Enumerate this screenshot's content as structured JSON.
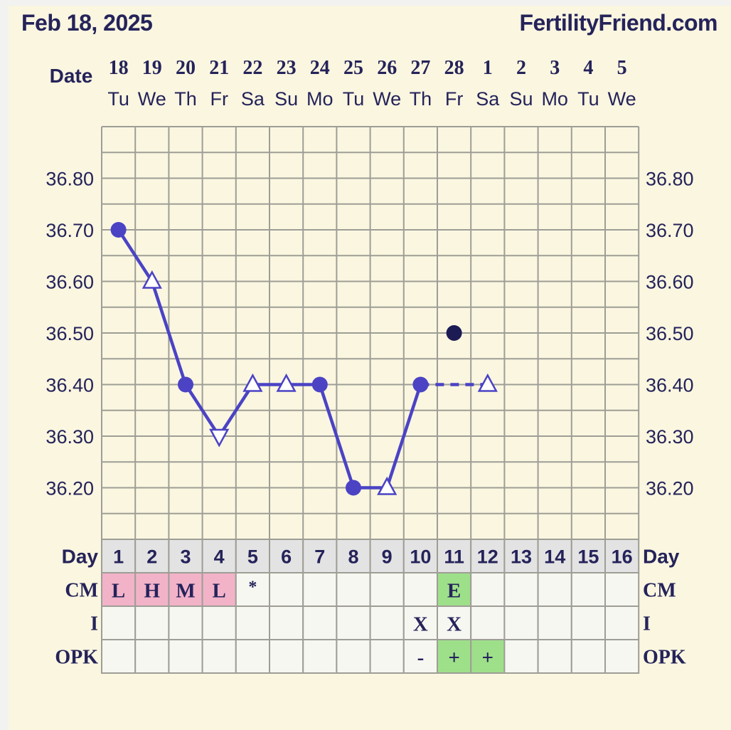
{
  "header": {
    "date_title": "Feb 18, 2025",
    "brand": "FertilityFriend.com"
  },
  "labels": {
    "date": "Date",
    "day": "Day",
    "cm": "CM",
    "i": "I",
    "opk": "OPK"
  },
  "colors": {
    "background": "#faf6e0",
    "grid": "#9e9e96",
    "line": "#4b43c4",
    "text": "#25235a",
    "day_row": "#e3e3e3",
    "cell": "#f7f7f2",
    "pink": "#f2b3c9",
    "green": "#9ee08a",
    "black_point": "#1d1b54"
  },
  "chart_data": {
    "type": "line",
    "title": "",
    "y_range": [
      36.1,
      36.9
    ],
    "y_ticks": [
      "36.80",
      "36.70",
      "36.60",
      "36.50",
      "36.40",
      "36.30",
      "36.20"
    ],
    "columns": [
      {
        "date": "18",
        "weekday": "Tu",
        "day": "1",
        "cm": "L",
        "cm_color": "pink",
        "i": "",
        "opk": "",
        "opk_color": ""
      },
      {
        "date": "19",
        "weekday": "We",
        "day": "2",
        "cm": "H",
        "cm_color": "pink",
        "i": "",
        "opk": "",
        "opk_color": ""
      },
      {
        "date": "20",
        "weekday": "Th",
        "day": "3",
        "cm": "M",
        "cm_color": "pink",
        "i": "",
        "opk": "",
        "opk_color": ""
      },
      {
        "date": "21",
        "weekday": "Fr",
        "day": "4",
        "cm": "L",
        "cm_color": "pink",
        "i": "",
        "opk": "",
        "opk_color": ""
      },
      {
        "date": "22",
        "weekday": "Sa",
        "day": "5",
        "cm": "*",
        "cm_color": "",
        "i": "",
        "opk": "",
        "opk_color": ""
      },
      {
        "date": "23",
        "weekday": "Su",
        "day": "6",
        "cm": "",
        "cm_color": "",
        "i": "",
        "opk": "",
        "opk_color": ""
      },
      {
        "date": "24",
        "weekday": "Mo",
        "day": "7",
        "cm": "",
        "cm_color": "",
        "i": "",
        "opk": "",
        "opk_color": ""
      },
      {
        "date": "25",
        "weekday": "Tu",
        "day": "8",
        "cm": "",
        "cm_color": "",
        "i": "",
        "opk": "",
        "opk_color": ""
      },
      {
        "date": "26",
        "weekday": "We",
        "day": "9",
        "cm": "",
        "cm_color": "",
        "i": "",
        "opk": "",
        "opk_color": ""
      },
      {
        "date": "27",
        "weekday": "Th",
        "day": "10",
        "cm": "",
        "cm_color": "",
        "i": "X",
        "opk": "-",
        "opk_color": ""
      },
      {
        "date": "28",
        "weekday": "Fr",
        "day": "11",
        "cm": "E",
        "cm_color": "green",
        "i": "X",
        "opk": "+",
        "opk_color": "green"
      },
      {
        "date": "1",
        "weekday": "Sa",
        "day": "12",
        "cm": "",
        "cm_color": "",
        "i": "",
        "opk": "+",
        "opk_color": "green"
      },
      {
        "date": "2",
        "weekday": "Su",
        "day": "13",
        "cm": "",
        "cm_color": "",
        "i": "",
        "opk": "",
        "opk_color": ""
      },
      {
        "date": "3",
        "weekday": "Mo",
        "day": "14",
        "cm": "",
        "cm_color": "",
        "i": "",
        "opk": "",
        "opk_color": ""
      },
      {
        "date": "4",
        "weekday": "Tu",
        "day": "15",
        "cm": "",
        "cm_color": "",
        "i": "",
        "opk": "",
        "opk_color": ""
      },
      {
        "date": "5",
        "weekday": "We",
        "day": "16",
        "cm": "",
        "cm_color": "",
        "i": "",
        "opk": "",
        "opk_color": ""
      }
    ],
    "temperatures": [
      {
        "day": 1,
        "value": 36.7,
        "marker": "circle"
      },
      {
        "day": 2,
        "value": 36.6,
        "marker": "triangle"
      },
      {
        "day": 3,
        "value": 36.4,
        "marker": "circle"
      },
      {
        "day": 4,
        "value": 36.3,
        "marker": "triangle-down"
      },
      {
        "day": 5,
        "value": 36.4,
        "marker": "triangle"
      },
      {
        "day": 6,
        "value": 36.4,
        "marker": "triangle"
      },
      {
        "day": 7,
        "value": 36.4,
        "marker": "circle"
      },
      {
        "day": 8,
        "value": 36.2,
        "marker": "circle"
      },
      {
        "day": 9,
        "value": 36.2,
        "marker": "triangle"
      },
      {
        "day": 10,
        "value": 36.4,
        "marker": "circle"
      },
      {
        "day": 12,
        "value": 36.4,
        "marker": "triangle"
      }
    ],
    "dashed_segments": [
      [
        10,
        12
      ]
    ],
    "discarded_points": [
      {
        "day": 11,
        "value": 36.5
      }
    ]
  }
}
